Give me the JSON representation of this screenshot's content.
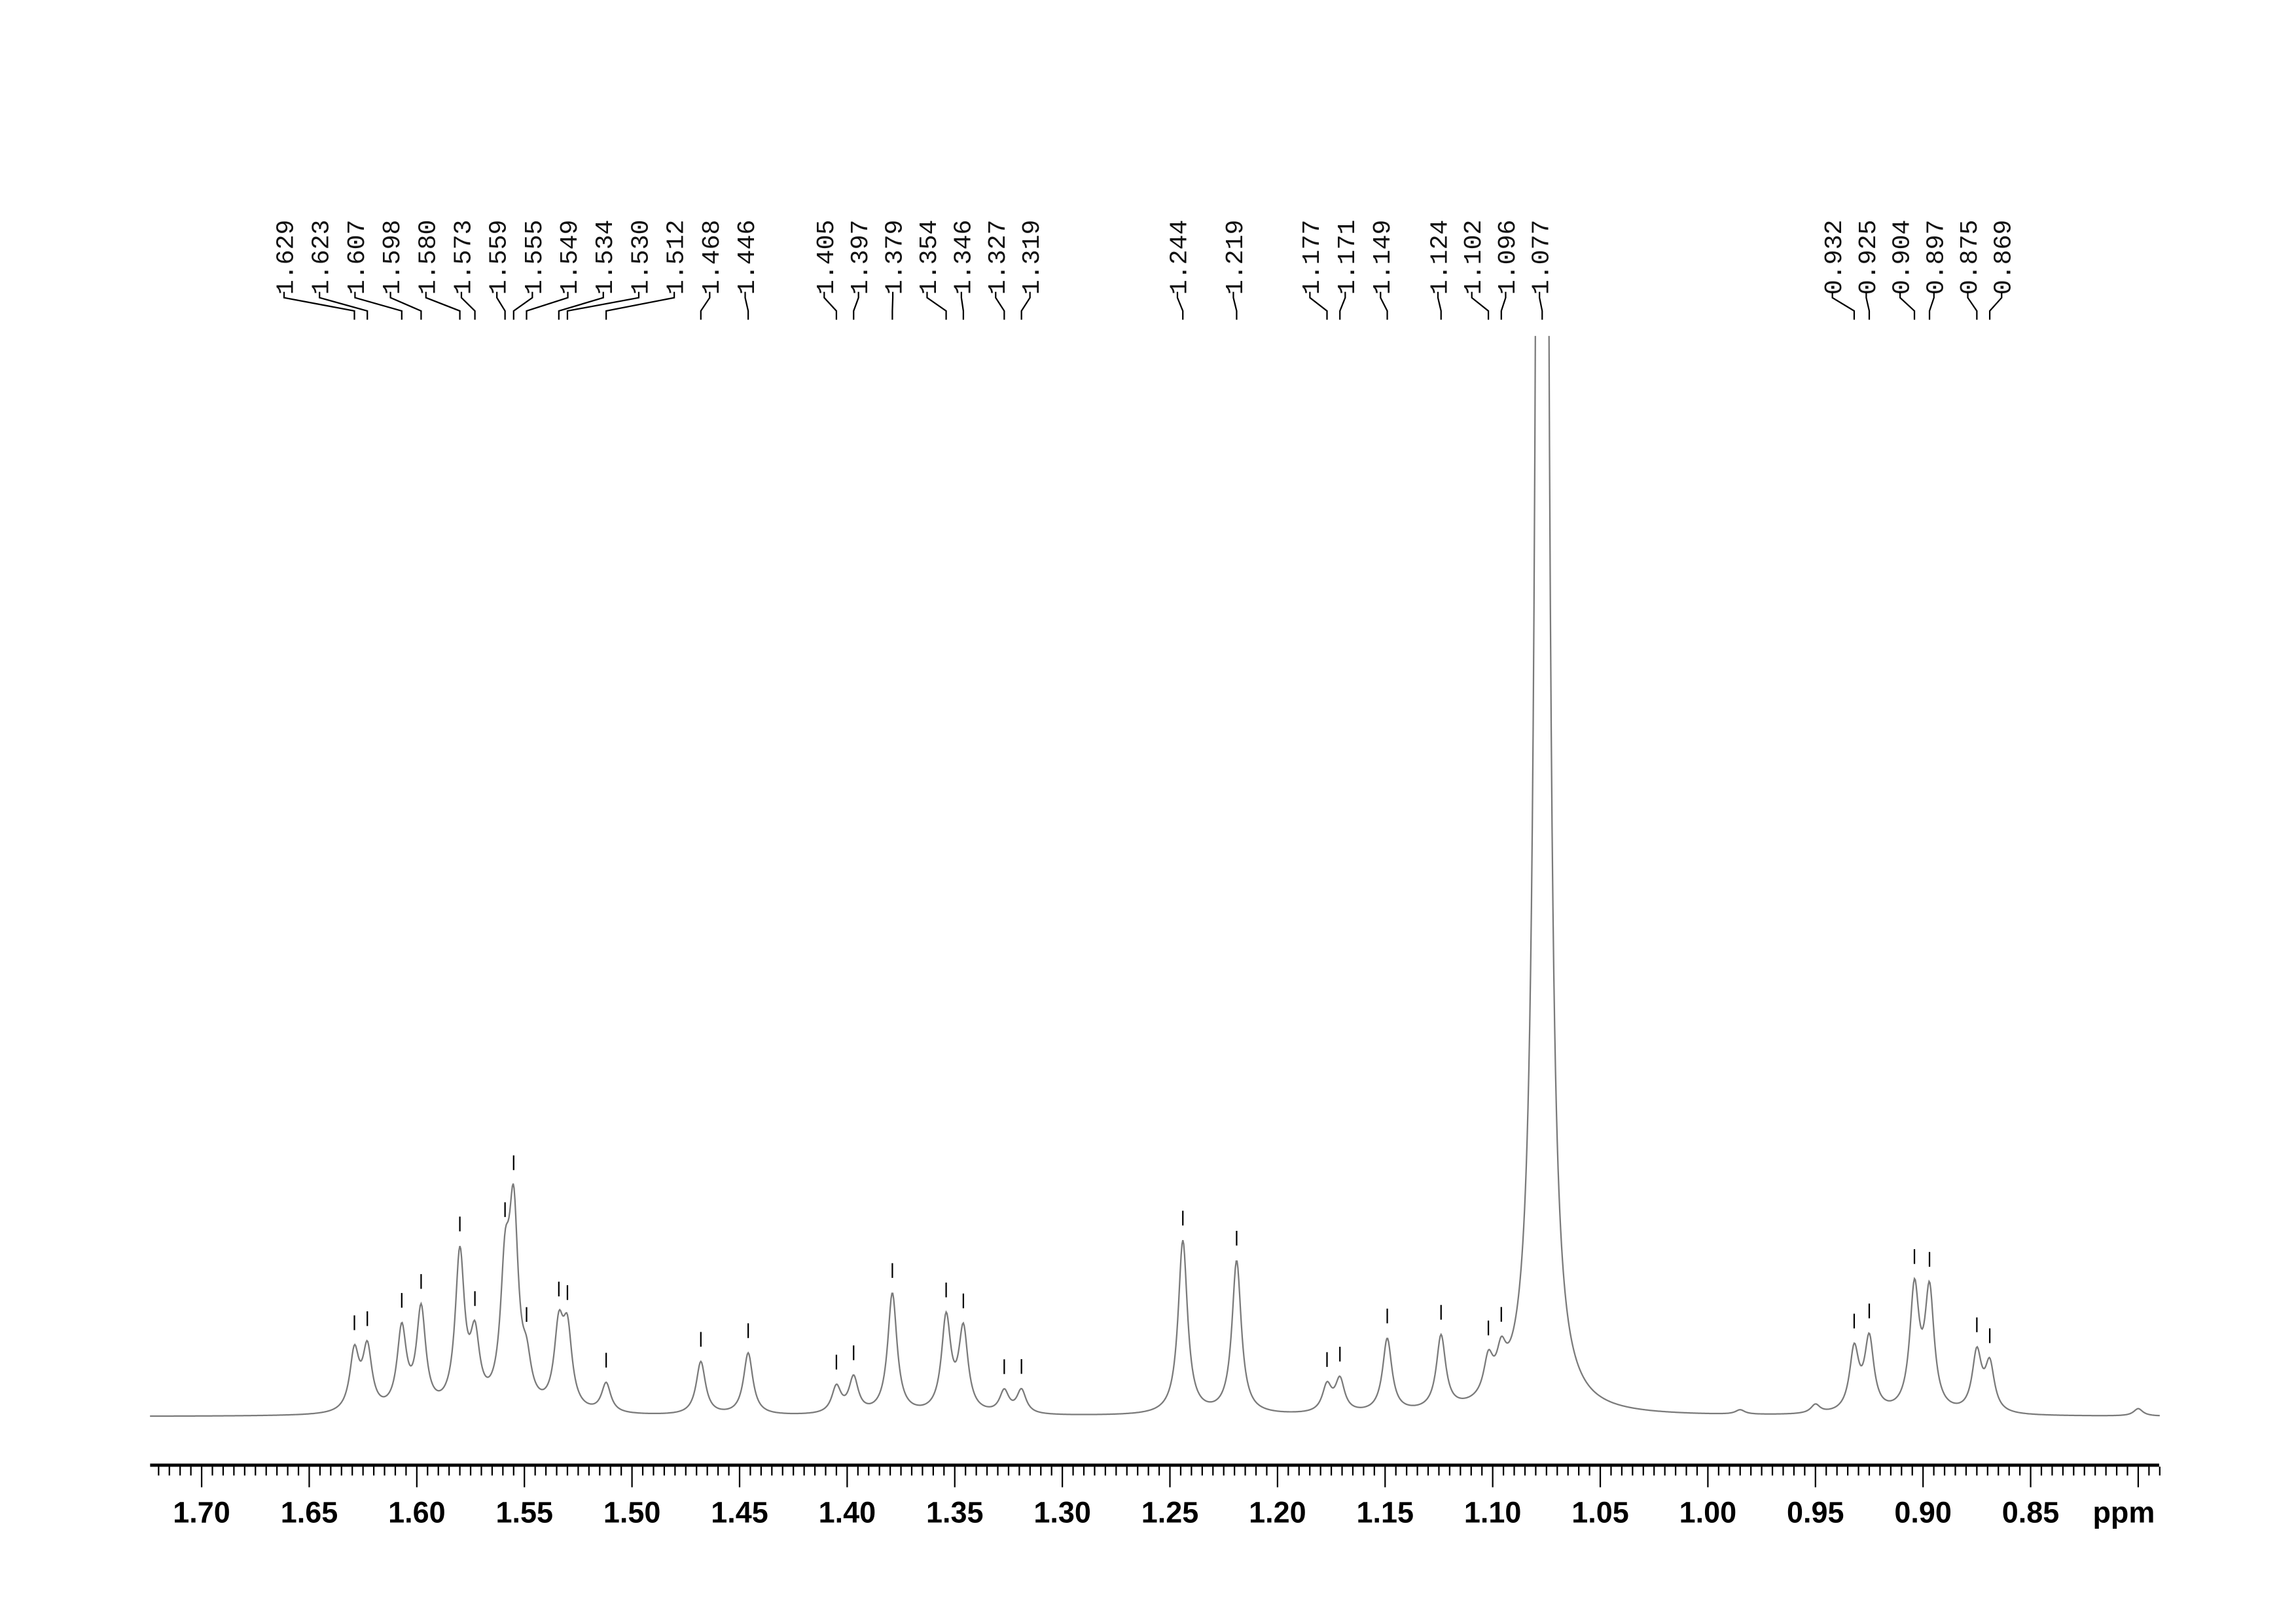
{
  "chart_data": {
    "type": "line",
    "title": "",
    "xlabel": "ppm",
    "ylabel": "",
    "xlim": [
      1.724,
      0.79
    ],
    "x_reversed": true,
    "grid": false,
    "line_color": "#7a7a7a",
    "x_ticks": [
      "1.70",
      "1.65",
      "1.60",
      "1.55",
      "1.50",
      "1.45",
      "1.40",
      "1.35",
      "1.30",
      "1.25",
      "1.20",
      "1.15",
      "1.10",
      "1.05",
      "1.00",
      "0.95",
      "0.90",
      "0.85"
    ],
    "peaks": [
      {
        "ppm": 1.629,
        "label": "1.629",
        "intensity": 40
      },
      {
        "ppm": 1.623,
        "label": "1.623",
        "intensity": 42
      },
      {
        "ppm": 1.607,
        "label": "1.607",
        "intensity": 55
      },
      {
        "ppm": 1.598,
        "label": "1.598",
        "intensity": 68
      },
      {
        "ppm": 1.58,
        "label": "1.580",
        "intensity": 105
      },
      {
        "ppm": 1.573,
        "label": "1.573",
        "intensity": 45
      },
      {
        "ppm": 1.559,
        "label": "1.559",
        "intensity": 82
      },
      {
        "ppm": 1.555,
        "label": "1.555",
        "intensity": 125
      },
      {
        "ppm": 1.549,
        "label": "1.549",
        "intensity": 25
      },
      {
        "ppm": 1.534,
        "label": "1.534",
        "intensity": 52
      },
      {
        "ppm": 1.53,
        "label": "1.530",
        "intensity": 50
      },
      {
        "ppm": 1.512,
        "label": "1.512",
        "intensity": 20
      },
      {
        "ppm": 1.468,
        "label": "1.468",
        "intensity": 36
      },
      {
        "ppm": 1.446,
        "label": "1.446",
        "intensity": 42
      },
      {
        "ppm": 1.405,
        "label": "1.405",
        "intensity": 18
      },
      {
        "ppm": 1.397,
        "label": "1.397",
        "intensity": 24
      },
      {
        "ppm": 1.379,
        "label": "1.379",
        "intensity": 82
      },
      {
        "ppm": 1.354,
        "label": "1.354",
        "intensity": 64
      },
      {
        "ppm": 1.346,
        "label": "1.346",
        "intensity": 56
      },
      {
        "ppm": 1.327,
        "label": "1.327",
        "intensity": 15
      },
      {
        "ppm": 1.319,
        "label": "1.319",
        "intensity": 16
      },
      {
        "ppm": 1.244,
        "label": "1.244",
        "intensity": 118
      },
      {
        "ppm": 1.219,
        "label": "1.219",
        "intensity": 104
      },
      {
        "ppm": 1.177,
        "label": "1.177",
        "intensity": 18
      },
      {
        "ppm": 1.171,
        "label": "1.171",
        "intensity": 22
      },
      {
        "ppm": 1.149,
        "label": "1.149",
        "intensity": 50
      },
      {
        "ppm": 1.124,
        "label": "1.124",
        "intensity": 50
      },
      {
        "ppm": 1.102,
        "label": "1.102",
        "intensity": 25
      },
      {
        "ppm": 1.096,
        "label": "1.096",
        "intensity": 23
      },
      {
        "ppm": 1.077,
        "label": "1.077",
        "intensity": 3000
      },
      {
        "ppm": 0.932,
        "label": "0.932",
        "intensity": 42
      },
      {
        "ppm": 0.925,
        "label": "0.925",
        "intensity": 49
      },
      {
        "ppm": 0.904,
        "label": "0.904",
        "intensity": 82
      },
      {
        "ppm": 0.897,
        "label": "0.897",
        "intensity": 80
      },
      {
        "ppm": 0.875,
        "label": "0.875",
        "intensity": 40
      },
      {
        "ppm": 0.869,
        "label": "0.869",
        "intensity": 32
      }
    ],
    "minor_peaks": [
      {
        "ppm": 0.985,
        "intensity": 3
      },
      {
        "ppm": 0.95,
        "intensity": 6
      },
      {
        "ppm": 0.8,
        "intensity": 5
      }
    ]
  }
}
